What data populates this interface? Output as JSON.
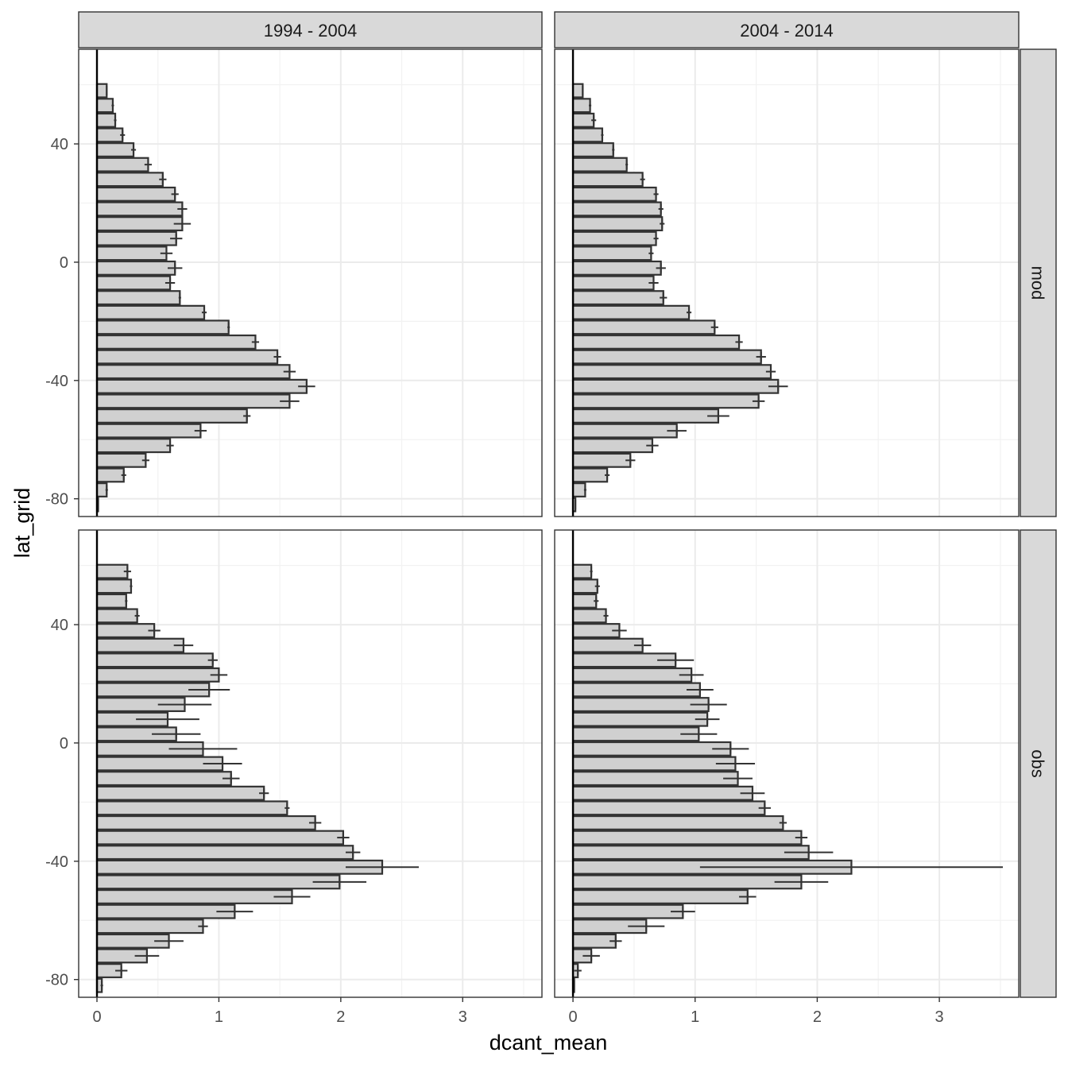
{
  "chart_data": {
    "type": "bar",
    "orientation": "horizontal",
    "xlabel": "dcant_mean",
    "ylabel": "lat_grid",
    "xlim": [
      -0.15,
      3.65
    ],
    "ylim": [
      -86,
      72
    ],
    "x_ticks": [
      0,
      1,
      2,
      3
    ],
    "x_tick_labels": [
      "0",
      "1",
      "2",
      "3"
    ],
    "y_ticks": [
      -80,
      -40,
      0,
      40
    ],
    "y_tick_labels": [
      "-80",
      "-40",
      "0",
      "40"
    ],
    "bar_height": 4.5,
    "grid": true,
    "col_facets": [
      "1994 - 2004",
      "2004 - 2014"
    ],
    "row_facets": [
      "mod",
      "obs"
    ],
    "bar_fill": "#d0d0d0",
    "bar_stroke": "#333333",
    "panels": [
      {
        "col": "1994 - 2004",
        "row": "mod",
        "lat": [
          -82,
          -77,
          -72,
          -67,
          -62,
          -57,
          -52,
          -47,
          -42,
          -37,
          -32,
          -27,
          -22,
          -17,
          -12,
          -7,
          -2,
          3,
          8,
          13,
          18,
          23,
          28,
          33,
          38,
          43,
          48,
          53,
          58,
          63,
          68
        ],
        "value": [
          0.01,
          0.08,
          0.22,
          0.4,
          0.6,
          0.85,
          1.23,
          1.58,
          1.72,
          1.58,
          1.48,
          1.3,
          1.08,
          0.88,
          0.68,
          0.6,
          0.64,
          0.57,
          0.65,
          0.7,
          0.7,
          0.64,
          0.54,
          0.42,
          0.3,
          0.21,
          0.15,
          0.13,
          0.08,
          null,
          null
        ],
        "error": [
          0.0,
          0.01,
          0.02,
          0.03,
          0.03,
          0.05,
          0.03,
          0.08,
          0.07,
          0.05,
          0.03,
          0.03,
          0.01,
          0.02,
          0.01,
          0.04,
          0.06,
          0.05,
          0.05,
          0.07,
          0.04,
          0.03,
          0.03,
          0.03,
          0.02,
          0.02,
          0.01,
          0.01,
          0.0,
          null,
          null
        ]
      },
      {
        "col": "2004 - 2014",
        "row": "mod",
        "lat": [
          -82,
          -77,
          -72,
          -67,
          -62,
          -57,
          -52,
          -47,
          -42,
          -37,
          -32,
          -27,
          -22,
          -17,
          -12,
          -7,
          -2,
          3,
          8,
          13,
          18,
          23,
          28,
          33,
          38,
          43,
          48,
          53,
          58,
          63,
          68
        ],
        "value": [
          0.02,
          0.1,
          0.28,
          0.47,
          0.65,
          0.85,
          1.19,
          1.52,
          1.68,
          1.62,
          1.54,
          1.36,
          1.16,
          0.95,
          0.74,
          0.66,
          0.72,
          0.64,
          0.68,
          0.73,
          0.72,
          0.68,
          0.57,
          0.44,
          0.33,
          0.24,
          0.17,
          0.14,
          0.08,
          null,
          null
        ],
        "error": [
          0.0,
          0.01,
          0.02,
          0.04,
          0.05,
          0.08,
          0.09,
          0.05,
          0.08,
          0.04,
          0.04,
          0.03,
          0.03,
          0.02,
          0.03,
          0.04,
          0.04,
          0.02,
          0.02,
          0.02,
          0.02,
          0.02,
          0.02,
          0.01,
          0.01,
          0.01,
          0.02,
          0.01,
          0.0,
          null,
          null
        ]
      },
      {
        "col": "1994 - 2004",
        "row": "obs",
        "lat": [
          -82,
          -77,
          -72,
          -67,
          -62,
          -57,
          -52,
          -47,
          -42,
          -37,
          -32,
          -27,
          -22,
          -17,
          -12,
          -7,
          -2,
          3,
          8,
          13,
          18,
          23,
          28,
          33,
          38,
          43,
          48,
          53,
          58,
          63,
          68
        ],
        "value": [
          0.04,
          0.2,
          0.41,
          0.59,
          0.87,
          1.13,
          1.6,
          1.99,
          2.34,
          2.1,
          2.02,
          1.79,
          1.56,
          1.37,
          1.1,
          1.03,
          0.87,
          0.65,
          0.58,
          0.72,
          0.92,
          1.0,
          0.95,
          0.71,
          0.47,
          0.33,
          0.24,
          0.28,
          0.25,
          null,
          null
        ],
        "error": [
          0.01,
          0.05,
          0.1,
          0.12,
          0.04,
          0.15,
          0.15,
          0.22,
          0.3,
          0.06,
          0.05,
          0.05,
          0.02,
          0.04,
          0.07,
          0.16,
          0.28,
          0.2,
          0.26,
          0.22,
          0.17,
          0.07,
          0.04,
          0.08,
          0.05,
          0.02,
          0.01,
          0.01,
          0.03,
          null,
          null
        ]
      },
      {
        "col": "2004 - 2014",
        "row": "obs",
        "lat": [
          -82,
          -77,
          -72,
          -67,
          -62,
          -57,
          -52,
          -47,
          -42,
          -37,
          -32,
          -27,
          -22,
          -17,
          -12,
          -7,
          -2,
          3,
          8,
          13,
          18,
          23,
          28,
          33,
          38,
          43,
          48,
          53,
          58,
          63,
          68
        ],
        "value": [
          0.01,
          0.04,
          0.15,
          0.35,
          0.6,
          0.9,
          1.43,
          1.87,
          2.28,
          1.93,
          1.87,
          1.72,
          1.57,
          1.47,
          1.35,
          1.33,
          1.29,
          1.03,
          1.1,
          1.11,
          1.04,
          0.97,
          0.84,
          0.57,
          0.38,
          0.27,
          0.19,
          0.2,
          0.15,
          null,
          null
        ],
        "error": [
          0.0,
          0.03,
          0.07,
          0.05,
          0.15,
          0.1,
          0.07,
          0.22,
          1.24,
          0.2,
          0.05,
          0.03,
          0.05,
          0.1,
          0.12,
          0.16,
          0.15,
          0.15,
          0.1,
          0.15,
          0.11,
          0.1,
          0.15,
          0.07,
          0.06,
          0.02,
          0.02,
          0.02,
          0.01,
          null,
          null
        ]
      }
    ]
  }
}
